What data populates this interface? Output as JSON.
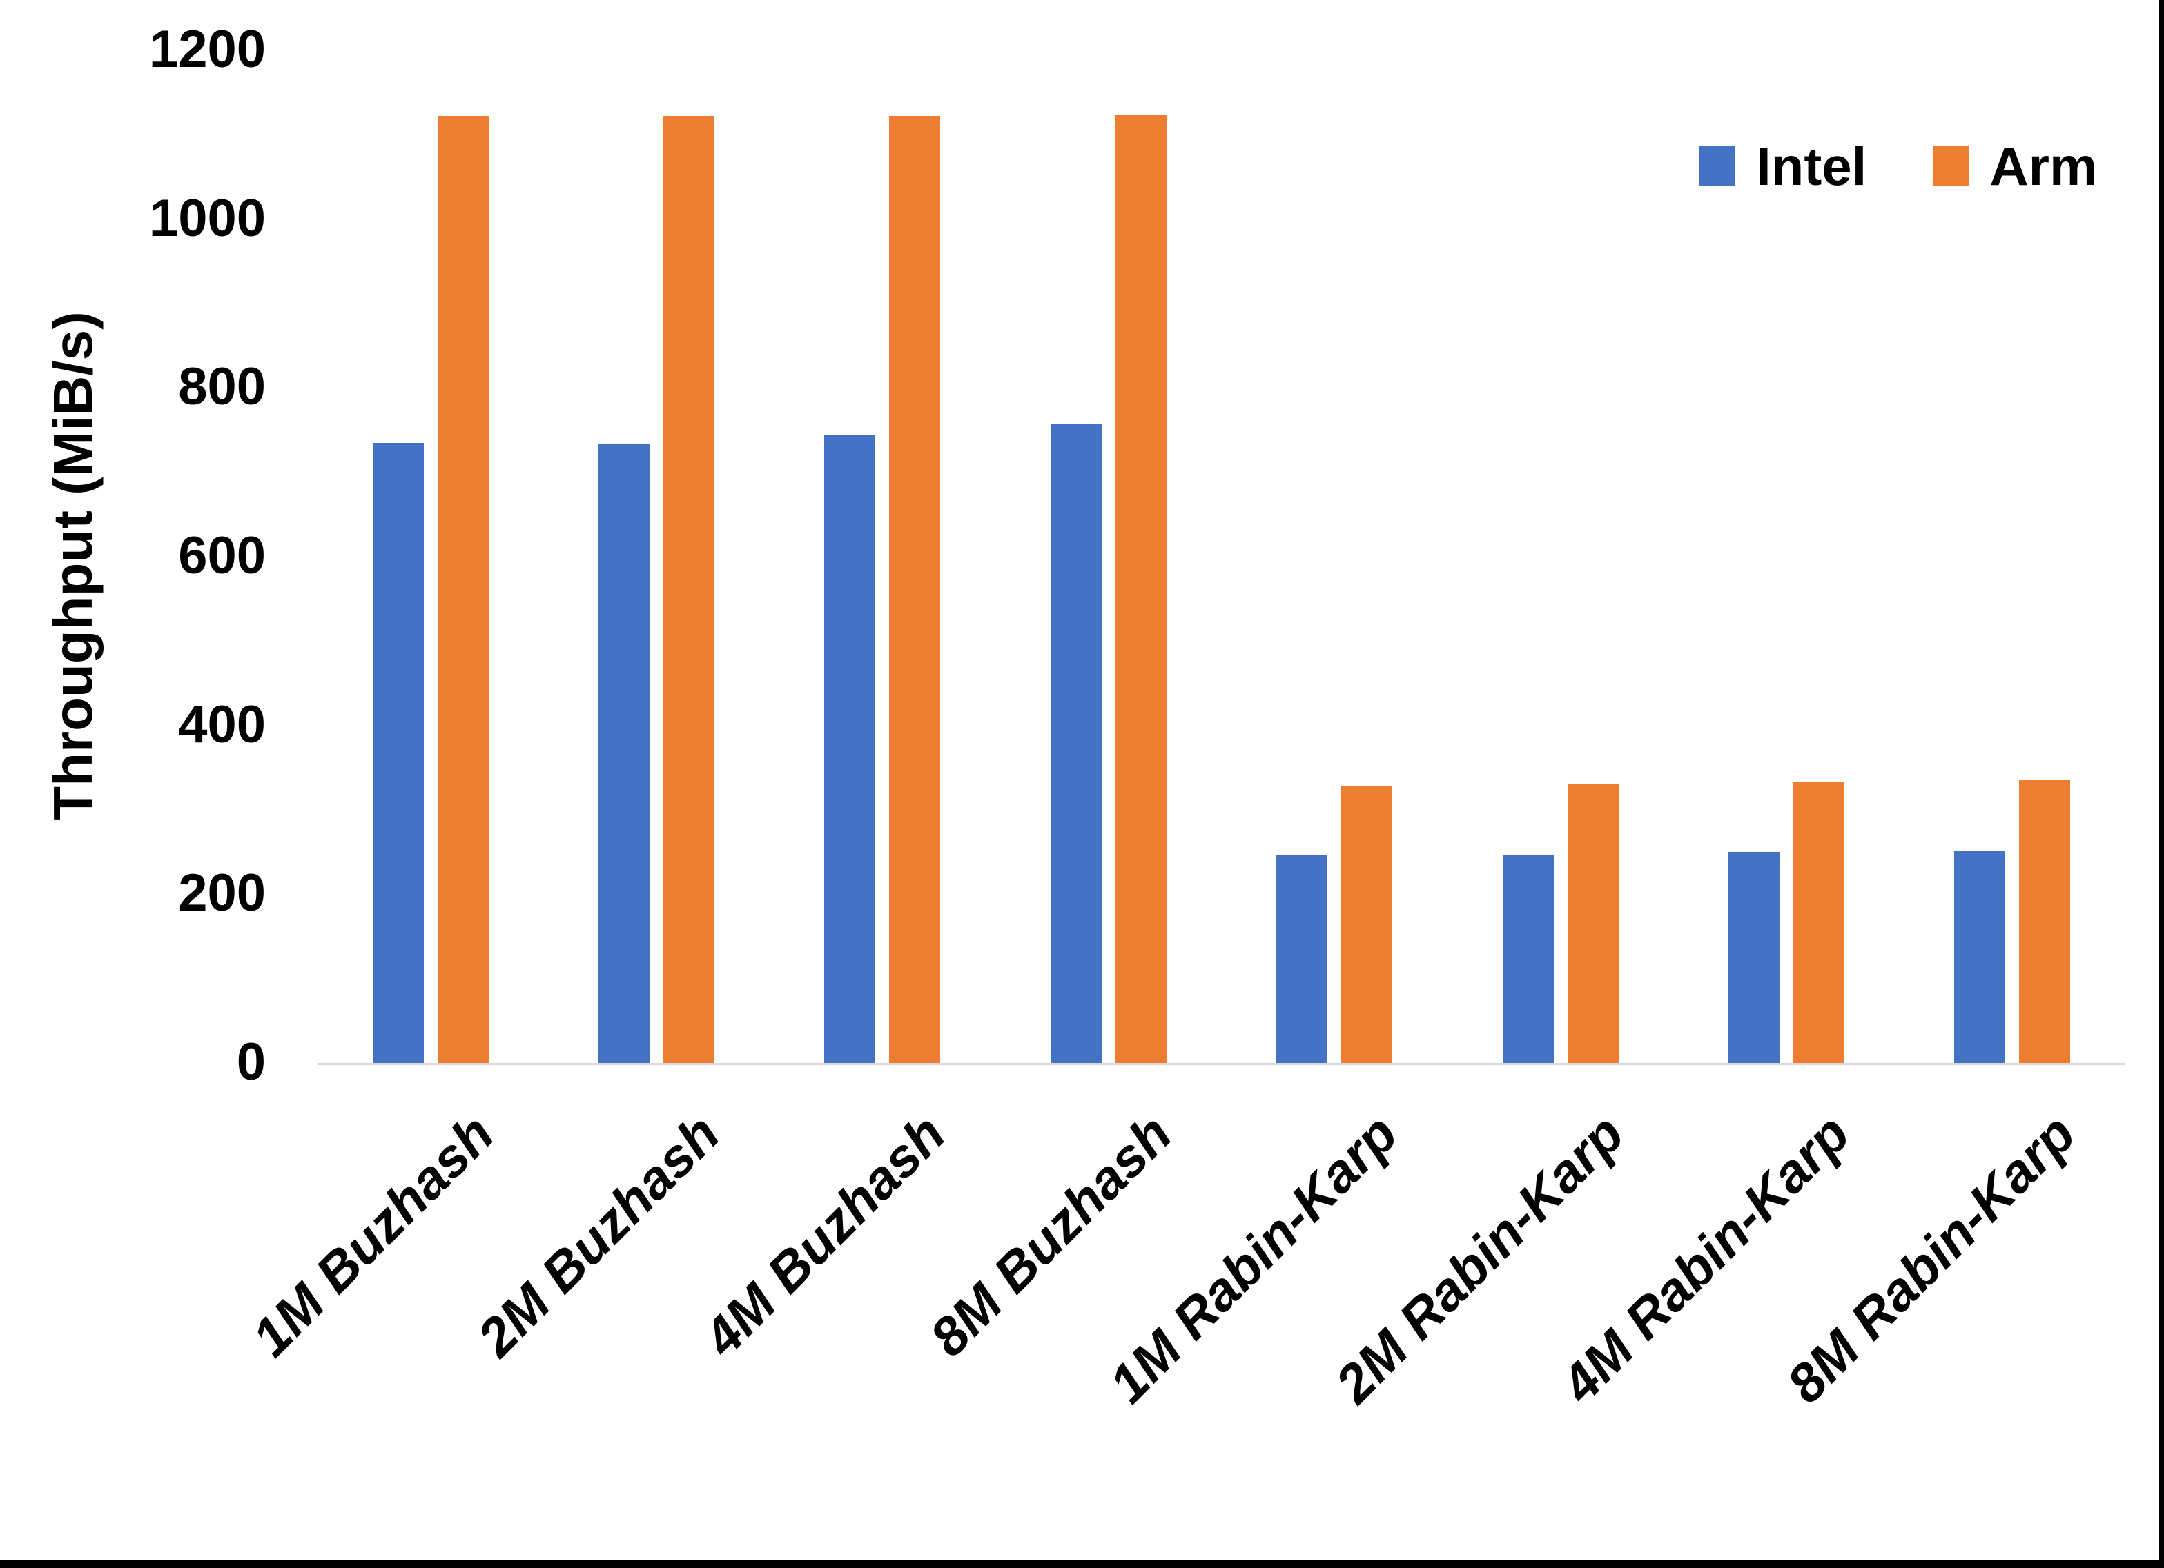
{
  "page": {
    "background": "#FFFFFF",
    "border_color": "#000000"
  },
  "chart_data": {
    "type": "bar",
    "title": "",
    "xlabel": "",
    "ylabel": "Throughput (MiB/s)",
    "categories": [
      "1M Buzhash",
      "2M Buzhash",
      "4M Buzhash",
      "8M Buzhash",
      "1M Rabin-Karp",
      "2M Rabin-Karp",
      "4M Rabin-Karp",
      "8M Rabin-Karp"
    ],
    "series": [
      {
        "name": "Intel",
        "color": "#4472C4",
        "values": [
          735,
          734,
          744,
          758,
          246,
          246,
          250,
          252
        ]
      },
      {
        "name": "Arm",
        "color": "#ED7D31",
        "values": [
          1122,
          1122,
          1122,
          1123,
          328,
          330,
          333,
          335
        ]
      }
    ],
    "ylim": [
      0,
      1200
    ],
    "yticks": [
      0,
      200,
      400,
      600,
      800,
      1000,
      1200
    ],
    "grid": false,
    "legend_position": "top-right",
    "axis_line_color": "#D9D9D9",
    "text_color": "#000000"
  }
}
